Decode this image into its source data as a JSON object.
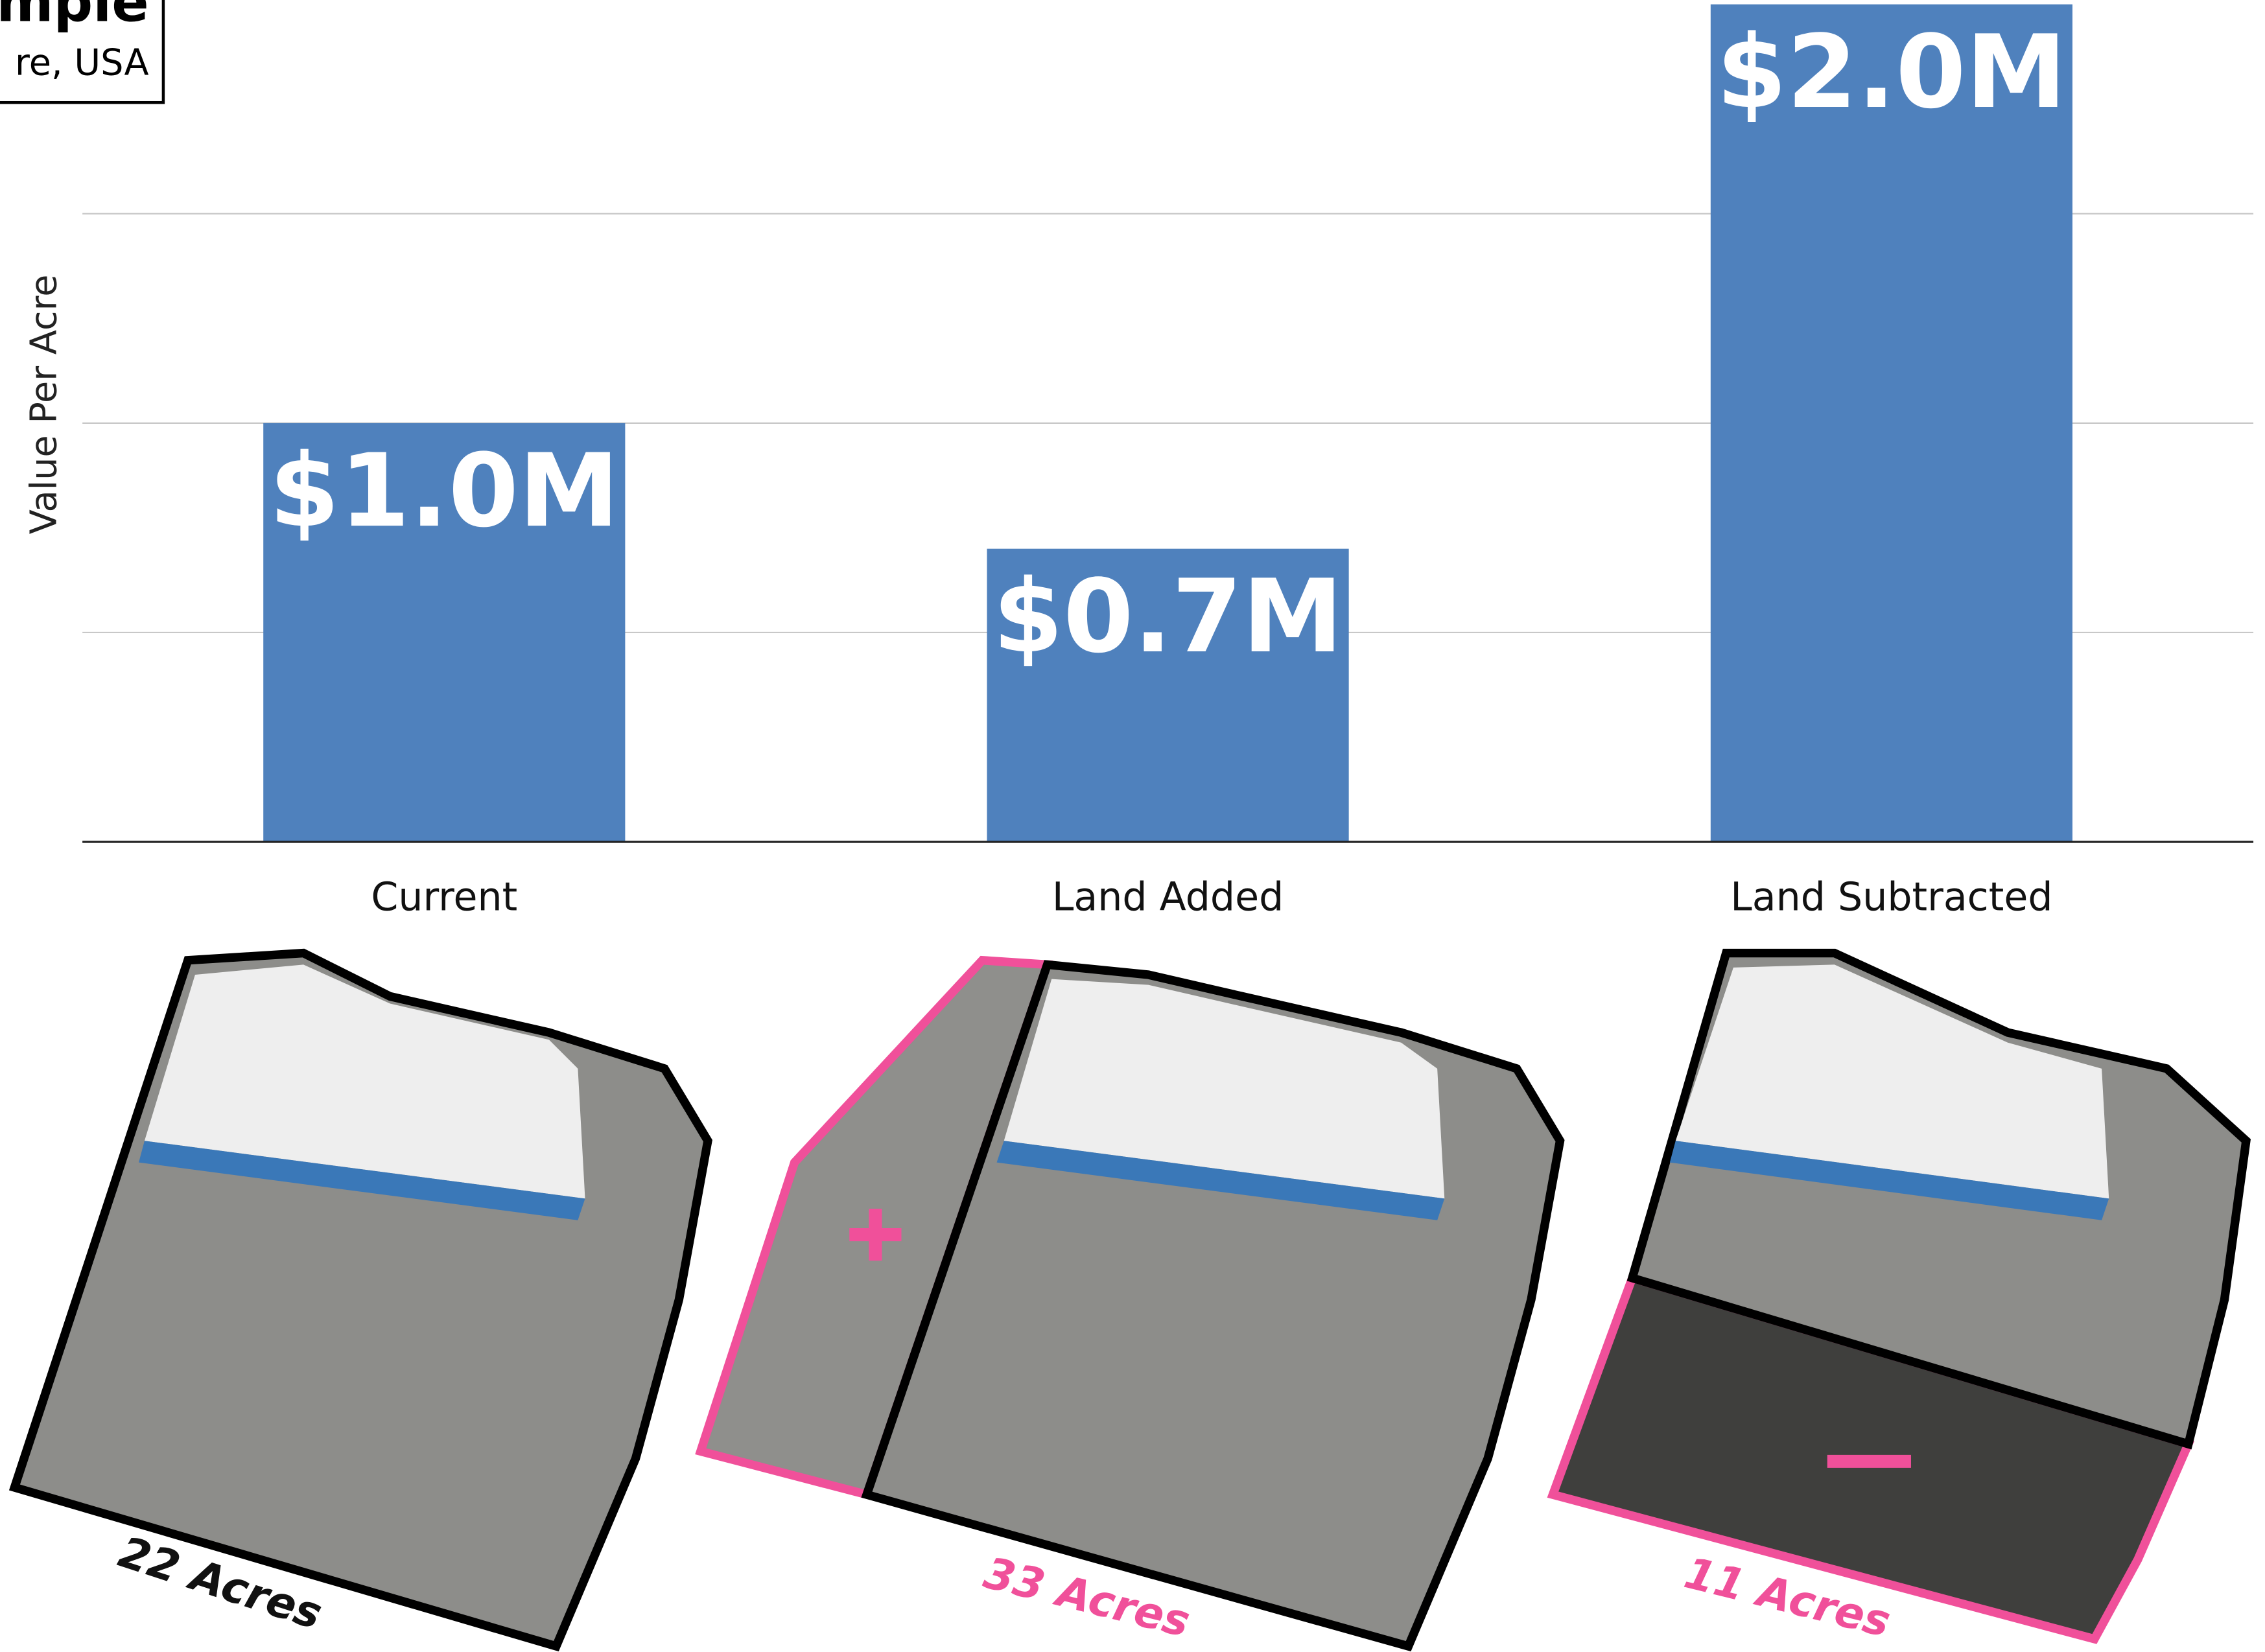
{
  "chart_data": {
    "type": "bar",
    "title": "mple",
    "subtitle": "re, USA",
    "y_label": "Value Per Acre",
    "categories": [
      "Current",
      "Land Added",
      "Land Subtracted"
    ],
    "values": [
      1.0,
      0.7,
      2.0
    ],
    "value_labels": [
      "$1.0M",
      "$0.7M",
      "$2.0M"
    ],
    "color": "#4f81bd",
    "ylim": [
      0,
      2.0
    ],
    "yticks": [
      0,
      0.5,
      1.0,
      1.5
    ],
    "grid": true,
    "annotations": [
      "22 Acres",
      "33 Acres",
      "11 Acres"
    ]
  }
}
